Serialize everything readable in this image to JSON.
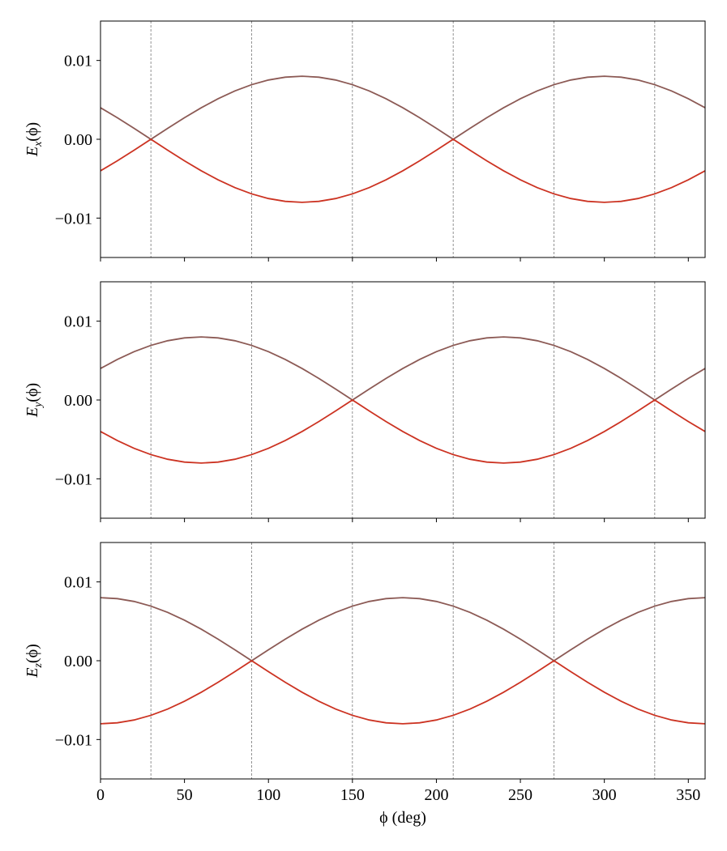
{
  "chart_data": [
    {
      "type": "line",
      "ylabel": [
        "E",
        "x",
        "(ϕ)"
      ],
      "x": [
        0,
        10,
        20,
        30,
        40,
        50,
        60,
        70,
        80,
        90,
        100,
        110,
        120,
        130,
        140,
        150,
        160,
        170,
        180,
        190,
        200,
        210,
        220,
        230,
        240,
        250,
        260,
        270,
        280,
        290,
        300,
        310,
        320,
        330,
        340,
        350,
        360
      ],
      "series": [
        {
          "color": "#8c5a55",
          "values": [
            0.004,
            0.00274,
            0.00139,
            0,
            0.00139,
            0.00274,
            0.004,
            0.00514,
            0.00613,
            0.00693,
            0.00752,
            0.00788,
            0.008,
            0.00788,
            0.00752,
            0.00693,
            0.00613,
            0.00514,
            0.004,
            0.00274,
            0.00139,
            0,
            0.00139,
            0.00274,
            0.004,
            0.00514,
            0.00613,
            0.00693,
            0.00752,
            0.00788,
            0.008,
            0.00788,
            0.00752,
            0.00693,
            0.00613,
            0.00514,
            0.004
          ]
        },
        {
          "color": "#cc3322",
          "values": [
            -0.004,
            -0.00274,
            -0.00139,
            0,
            -0.00139,
            -0.00274,
            -0.004,
            -0.00514,
            -0.00613,
            -0.00693,
            -0.00752,
            -0.00788,
            -0.008,
            -0.00788,
            -0.00752,
            -0.00693,
            -0.00613,
            -0.00514,
            -0.004,
            -0.00274,
            -0.00139,
            0,
            -0.00139,
            -0.00274,
            -0.004,
            -0.00514,
            -0.00613,
            -0.00693,
            -0.00752,
            -0.00788,
            -0.008,
            -0.00788,
            -0.00752,
            -0.00693,
            -0.00613,
            -0.00514,
            -0.004
          ]
        }
      ],
      "vlines": [
        30,
        90,
        150,
        210,
        270,
        330
      ],
      "xlim": [
        0,
        360
      ],
      "xticks": [
        0,
        50,
        100,
        150,
        200,
        250,
        300,
        350
      ],
      "ylim": [
        -0.015,
        0.015
      ],
      "yticks": [
        {
          "value": -0.01,
          "label": "−0.01"
        },
        {
          "value": 0,
          "label": "0.00"
        },
        0.01
      ]
    },
    {
      "type": "line",
      "ylabel": [
        "E",
        "y",
        "(ϕ)"
      ],
      "x": [
        0,
        10,
        20,
        30,
        40,
        50,
        60,
        70,
        80,
        90,
        100,
        110,
        120,
        130,
        140,
        150,
        160,
        170,
        180,
        190,
        200,
        210,
        220,
        230,
        240,
        250,
        260,
        270,
        280,
        290,
        300,
        310,
        320,
        330,
        340,
        350,
        360
      ],
      "series": [
        {
          "color": "#8c5a55",
          "values": [
            0.004,
            0.00514,
            0.00613,
            0.00693,
            0.00752,
            0.00788,
            0.008,
            0.00788,
            0.00752,
            0.00693,
            0.00613,
            0.00514,
            0.004,
            0.00274,
            0.00139,
            0,
            0.00139,
            0.00274,
            0.004,
            0.00514,
            0.00613,
            0.00693,
            0.00752,
            0.00788,
            0.008,
            0.00788,
            0.00752,
            0.00693,
            0.00613,
            0.00514,
            0.004,
            0.00274,
            0.00139,
            0,
            0.00139,
            0.00274,
            0.004
          ]
        },
        {
          "color": "#cc3322",
          "values": [
            -0.004,
            -0.00514,
            -0.00613,
            -0.00693,
            -0.00752,
            -0.00788,
            -0.008,
            -0.00788,
            -0.00752,
            -0.00693,
            -0.00613,
            -0.00514,
            -0.004,
            -0.00274,
            -0.00139,
            0,
            -0.00139,
            -0.00274,
            -0.004,
            -0.00514,
            -0.00613,
            -0.00693,
            -0.00752,
            -0.00788,
            -0.008,
            -0.00788,
            -0.00752,
            -0.00693,
            -0.00613,
            -0.00514,
            -0.004,
            -0.00274,
            -0.00139,
            0,
            -0.00139,
            -0.00274,
            -0.004
          ]
        }
      ],
      "vlines": [
        30,
        90,
        150,
        210,
        270,
        330
      ],
      "xlim": [
        0,
        360
      ],
      "xticks": [
        0,
        50,
        100,
        150,
        200,
        250,
        300,
        350
      ],
      "ylim": [
        -0.015,
        0.015
      ],
      "yticks": [
        {
          "value": -0.01,
          "label": "−0.01"
        },
        {
          "value": 0,
          "label": "0.00"
        },
        0.01
      ]
    },
    {
      "type": "line",
      "ylabel": [
        "E",
        "z",
        "(ϕ)"
      ],
      "xlabel": "ϕ (deg)",
      "x": [
        0,
        10,
        20,
        30,
        40,
        50,
        60,
        70,
        80,
        90,
        100,
        110,
        120,
        130,
        140,
        150,
        160,
        170,
        180,
        190,
        200,
        210,
        220,
        230,
        240,
        250,
        260,
        270,
        280,
        290,
        300,
        310,
        320,
        330,
        340,
        350,
        360
      ],
      "series": [
        {
          "color": "#8c5a55",
          "values": [
            0.008,
            0.00788,
            0.00752,
            0.00693,
            0.00613,
            0.00514,
            0.004,
            0.00274,
            0.00139,
            0,
            0.00139,
            0.00274,
            0.004,
            0.00514,
            0.00613,
            0.00693,
            0.00752,
            0.00788,
            0.008,
            0.00788,
            0.00752,
            0.00693,
            0.00613,
            0.00514,
            0.004,
            0.00274,
            0.00139,
            0,
            0.00139,
            0.00274,
            0.004,
            0.00514,
            0.00613,
            0.00693,
            0.00752,
            0.00788,
            0.008
          ]
        },
        {
          "color": "#cc3322",
          "values": [
            -0.008,
            -0.00788,
            -0.00752,
            -0.00693,
            -0.00613,
            -0.00514,
            -0.004,
            -0.00274,
            -0.00139,
            0,
            -0.00139,
            -0.00274,
            -0.004,
            -0.00514,
            -0.00613,
            -0.00693,
            -0.00752,
            -0.00788,
            -0.008,
            -0.00788,
            -0.00752,
            -0.00693,
            -0.00613,
            -0.00514,
            -0.004,
            -0.00274,
            -0.00139,
            0,
            -0.00139,
            -0.00274,
            -0.004,
            -0.00514,
            -0.00613,
            -0.00693,
            -0.00752,
            -0.00788,
            -0.008
          ]
        }
      ],
      "vlines": [
        30,
        90,
        150,
        210,
        270,
        330
      ],
      "xlim": [
        0,
        360
      ],
      "xticks": [
        0,
        50,
        100,
        150,
        200,
        250,
        300,
        350
      ],
      "ylim": [
        -0.015,
        0.015
      ],
      "yticks": [
        {
          "value": -0.01,
          "label": "−0.01"
        },
        {
          "value": 0,
          "label": "0.00"
        },
        0.01
      ]
    }
  ]
}
